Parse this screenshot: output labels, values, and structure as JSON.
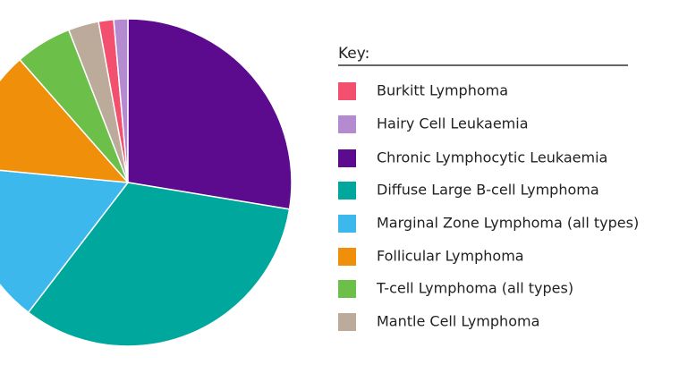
{
  "chart_data": {
    "type": "pie",
    "legend_title": "Key:",
    "categories": [
      "Burkitt Lymphoma",
      "Hairy Cell Leukaemia",
      "Chronic Lymphocytic Leukaemia",
      "Diffuse Large B-cell Lymphoma",
      "Marginal Zone Lymphoma (all types)",
      "Follicular Lymphoma",
      "T-cell Lymphoma (all types)",
      "Mantle Cell Lymphoma"
    ],
    "values": [
      1.5,
      1.4,
      27.6,
      32.8,
      16.1,
      12,
      5.6,
      3
    ],
    "colors": [
      "#f2506e",
      "#b48ad0",
      "#5c0a8e",
      "#00a79d",
      "#3db8ec",
      "#f0900a",
      "#6cc04a",
      "#bcaa9a"
    ],
    "legend": "right"
  }
}
